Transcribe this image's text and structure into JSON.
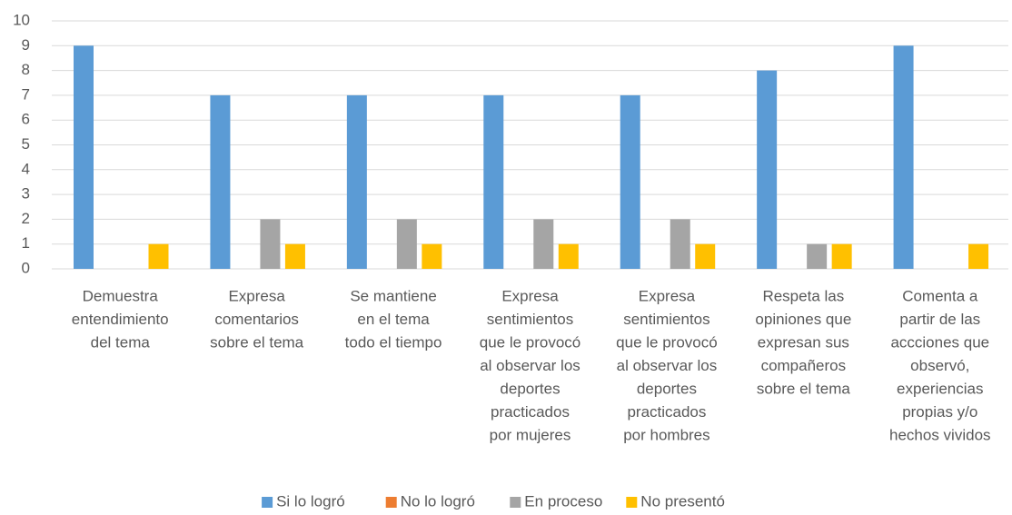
{
  "chart_data": {
    "type": "bar",
    "categories": [
      [
        "Demuestra",
        "entendimiento",
        "del tema"
      ],
      [
        "Expresa",
        "comentarios",
        "sobre el tema"
      ],
      [
        "Se mantiene",
        "en el tema",
        "todo el tiempo"
      ],
      [
        "Expresa",
        "sentimientos",
        "que le provocó",
        "al observar los",
        "deportes",
        "practicados",
        "por mujeres"
      ],
      [
        "Expresa",
        "sentimientos",
        "que le provocó",
        "al observar los",
        "deportes",
        "practicados",
        "por hombres"
      ],
      [
        "Respeta las",
        "opiniones que",
        "expresan sus",
        "compañeros",
        "sobre el tema"
      ],
      [
        "Comenta a",
        "partir de las",
        "accciones que",
        "observó,",
        "experiencias",
        "propias y/o",
        "hechos vividos"
      ]
    ],
    "series": [
      {
        "name": "Si lo logró",
        "color": "#5b9bd5",
        "values": [
          9,
          7,
          7,
          7,
          7,
          8,
          9
        ]
      },
      {
        "name": "No lo logró",
        "color": "#ed7d31",
        "values": [
          0,
          0,
          0,
          0,
          0,
          0,
          0
        ]
      },
      {
        "name": "En proceso",
        "color": "#a5a5a5",
        "values": [
          0,
          2,
          2,
          2,
          2,
          1,
          0
        ]
      },
      {
        "name": "No presentó",
        "color": "#ffc000",
        "values": [
          1,
          1,
          1,
          1,
          1,
          1,
          1
        ]
      }
    ],
    "ylim": [
      0,
      10
    ],
    "yticks": [
      0,
      1,
      2,
      3,
      4,
      5,
      6,
      7,
      8,
      9,
      10
    ],
    "grid": true,
    "legend": "bottom"
  }
}
